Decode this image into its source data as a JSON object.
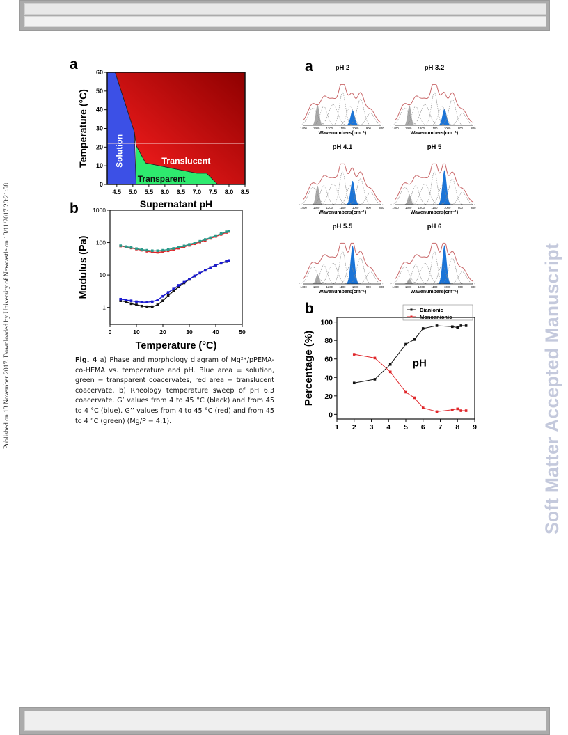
{
  "page": {
    "side_text": "Published on 13 November 2017. Downloaded by University of Newcastle on 13/11/2017 20:21:58.",
    "watermark": "Soft Matter Accepted Manuscript"
  },
  "caption": {
    "label": "Fig. 4",
    "text": " a) Phase and morphology diagram of Mg²⁺/pPEMA-co-HEMA vs. temperature and pH. Blue area = solution, green = transparent coacervates, red area = translucent coacervate. b) Rheology temperature sweep of pH 6.3 coacervate. G’ values from 4 to 45 °C (black) and from 45 to 4 °C (blue). G’’ values from 4 to 45 °C (red) and from 45 to 4 °C (green) (Mg/P = 4:1)."
  },
  "colors": {
    "solution": "#3c50e6",
    "transparent": "#2eea6e",
    "translucent_dark": "#8e0000",
    "translucent_light": "#ff2020",
    "black_series": "#111111",
    "blue_series": "#1a1ad0",
    "red_series": "#e0262a",
    "green_series": "#2a9a8a",
    "ftir_band_blue": "#1a74d8",
    "ftir_band_gray": "#a8a8a8",
    "ftir_envelope": "#c9686a"
  },
  "chart_data": [
    {
      "id": "phase-diagram",
      "panel_label": "a",
      "type": "area",
      "xlabel": "Supernatant pH",
      "ylabel": "Temperature (°C)",
      "xlim": [
        4.2,
        8.5
      ],
      "ylim": [
        0,
        60
      ],
      "xticks": [
        "4.5",
        "5.0",
        "5.5",
        "6.0",
        "6.5",
        "7.0",
        "7.5",
        "8.0",
        "8.5"
      ],
      "yticks": [
        "0",
        "10",
        "20",
        "30",
        "40",
        "50",
        "60"
      ],
      "regions": [
        {
          "name": "Solution",
          "boundary": [
            [
              4.2,
              0
            ],
            [
              4.2,
              60
            ],
            [
              4.45,
              60
            ],
            [
              5.05,
              28
            ],
            [
              5.1,
              0
            ]
          ]
        },
        {
          "name": "Transparent",
          "boundary": [
            [
              5.1,
              0
            ],
            [
              5.1,
              21
            ],
            [
              5.4,
              11.5
            ],
            [
              7.0,
              6
            ],
            [
              7.3,
              6
            ],
            [
              7.65,
              0
            ]
          ]
        },
        {
          "name": "Translucent",
          "boundary": [
            [
              4.45,
              60
            ],
            [
              8.5,
              60
            ],
            [
              8.5,
              0
            ],
            [
              7.65,
              0
            ],
            [
              7.3,
              6
            ],
            [
              7.0,
              6
            ],
            [
              5.4,
              11.5
            ],
            [
              5.1,
              21
            ],
            [
              5.05,
              28
            ]
          ]
        }
      ],
      "grid": false,
      "horizontal_line_y": 22
    },
    {
      "id": "rheology",
      "panel_label": "b",
      "type": "scatter",
      "xlabel": "Temperature (°C)",
      "ylabel": "Modulus (Pa)",
      "xlim": [
        0,
        50
      ],
      "ylim": [
        0.3,
        1000
      ],
      "yscale": "log",
      "xticks": [
        "0",
        "10",
        "20",
        "30",
        "40",
        "50"
      ],
      "yticks": [
        "1",
        "10",
        "100",
        "1000"
      ],
      "series": [
        {
          "color": "black",
          "x": [
            4,
            6,
            8,
            10,
            12,
            14,
            16,
            18,
            20,
            22,
            24,
            26,
            28,
            30,
            32,
            34,
            36,
            38,
            40,
            42,
            44,
            45
          ],
          "y": [
            1.6,
            1.5,
            1.3,
            1.2,
            1.1,
            1.05,
            1.05,
            1.2,
            1.6,
            2.3,
            3.2,
            4.3,
            5.7,
            7.3,
            9.3,
            11.5,
            14,
            17,
            20,
            23,
            26,
            28
          ]
        },
        {
          "color": "blue",
          "x": [
            4,
            6,
            8,
            10,
            12,
            14,
            16,
            18,
            20,
            22,
            24,
            26,
            28,
            30,
            32,
            34,
            36,
            38,
            40,
            42,
            44,
            45
          ],
          "y": [
            1.8,
            1.7,
            1.6,
            1.5,
            1.45,
            1.45,
            1.5,
            1.7,
            2.2,
            2.9,
            3.7,
            4.8,
            6.0,
            7.5,
            9.4,
            11.5,
            14,
            17,
            20,
            23,
            26.5,
            28
          ]
        },
        {
          "color": "red",
          "x": [
            4,
            6,
            8,
            10,
            12,
            14,
            16,
            18,
            20,
            22,
            24,
            26,
            28,
            30,
            32,
            34,
            36,
            38,
            40,
            42,
            44,
            45
          ],
          "y": [
            78,
            73,
            68,
            63,
            58,
            54,
            51,
            50,
            52,
            56,
            61,
            67,
            74,
            82,
            92,
            104,
            118,
            135,
            155,
            178,
            205,
            220
          ]
        },
        {
          "color": "green",
          "x": [
            4,
            6,
            8,
            10,
            12,
            14,
            16,
            18,
            20,
            22,
            24,
            26,
            28,
            30,
            32,
            34,
            36,
            38,
            40,
            42,
            44,
            45
          ],
          "y": [
            80,
            75,
            70,
            65,
            61,
            58,
            56,
            56,
            58,
            61,
            66,
            72,
            79,
            88,
            98,
            110,
            125,
            143,
            164,
            188,
            215,
            228
          ]
        }
      ],
      "grid": false
    },
    {
      "id": "ftir-spectra",
      "panel_label": "a",
      "type": "area",
      "xlabel": "Wavenumbers(cm⁻¹)",
      "xticks": [
        "1400",
        "1300",
        "1200",
        "1100",
        "1000",
        "900",
        "800"
      ],
      "panels": [
        {
          "title": "pH 2",
          "blue_band": 1000,
          "blue_height": 0.35,
          "gray_height": 0.48
        },
        {
          "title": "pH 3.2",
          "blue_band": 1000,
          "blue_height": 0.38,
          "gray_height": 0.46
        },
        {
          "title": "pH 4.1",
          "blue_band": 1000,
          "blue_height": 0.55,
          "gray_height": 0.44
        },
        {
          "title": "pH 5",
          "blue_band": 1000,
          "blue_height": 0.8,
          "gray_height": 0.22
        },
        {
          "title": "pH 5.5",
          "blue_band": 1000,
          "blue_height": 0.88,
          "gray_height": 0.22
        },
        {
          "title": "pH 6",
          "blue_band": 1000,
          "blue_height": 0.9,
          "gray_height": 0.12
        }
      ]
    },
    {
      "id": "percentage",
      "panel_label": "b",
      "type": "line",
      "xlabel": "pH",
      "ylabel": "Percentage (%)",
      "xlim": [
        1,
        9
      ],
      "ylim": [
        -5,
        105
      ],
      "xticks": [
        "1",
        "2",
        "3",
        "4",
        "5",
        "6",
        "7",
        "8",
        "9"
      ],
      "yticks": [
        "0",
        "20",
        "40",
        "60",
        "80",
        "100"
      ],
      "legend": "top-right",
      "series": [
        {
          "name": "Dianionic",
          "color": "#111111",
          "x": [
            2,
            3.2,
            4.1,
            5,
            5.5,
            6,
            6.8,
            7.7,
            8.0,
            8.2,
            8.5
          ],
          "y": [
            34,
            38,
            54,
            76,
            81,
            93,
            96,
            95,
            94,
            96,
            96
          ]
        },
        {
          "name": "Monoanionic",
          "color": "#e0262a",
          "x": [
            2,
            3.2,
            4.1,
            5,
            5.5,
            6,
            6.8,
            7.7,
            8.0,
            8.2,
            8.5
          ],
          "y": [
            65,
            61,
            46,
            24,
            18,
            7,
            3,
            5,
            6,
            4,
            4
          ]
        }
      ],
      "grid": false
    }
  ]
}
